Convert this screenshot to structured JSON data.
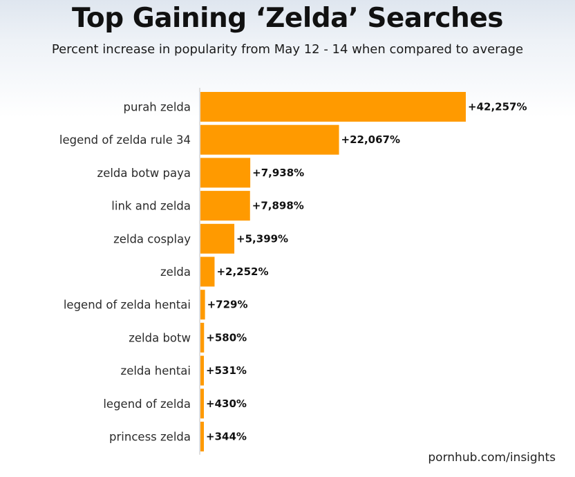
{
  "title": "Top Gaining ‘Zelda’ Searches",
  "subtitle": "Percent increase in popularity from May 12 - 14 when compared to average",
  "footer": "pornhub.com/insights",
  "colors": {
    "bar": "#ff9a00",
    "axis": "#bdbdbd",
    "label": "#2b2b2b",
    "value": "#111111"
  },
  "chart_data": {
    "type": "bar",
    "orientation": "horizontal",
    "categories": [
      "purah zelda",
      "legend of zelda rule 34",
      "zelda botw paya",
      "link and zelda",
      "zelda cosplay",
      "zelda",
      "legend of zelda hentai",
      "zelda botw",
      "zelda hentai",
      "legend of zelda",
      "princess zelda"
    ],
    "values": [
      42257,
      22067,
      7938,
      7898,
      5399,
      2252,
      729,
      580,
      531,
      430,
      344
    ],
    "value_labels": [
      "+42,257%",
      "+22,067%",
      "+7,938%",
      "+7,898%",
      "+5,399%",
      "+2,252%",
      "+729%",
      "+580%",
      "+531%",
      "+430%",
      "+344%"
    ],
    "xlim": [
      0,
      42257
    ],
    "grid": false
  }
}
